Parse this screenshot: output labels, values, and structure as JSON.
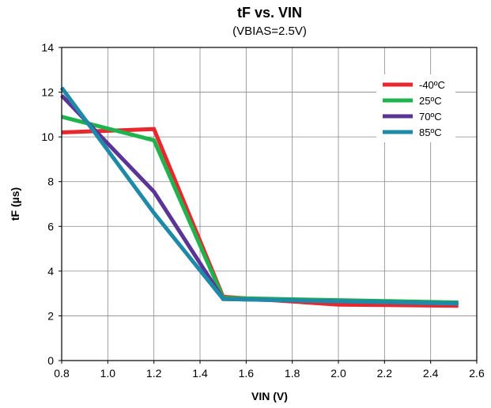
{
  "chart_data": {
    "type": "line",
    "title": "tF vs. VIN",
    "subtitle": "(VBIAS=2.5V)",
    "xlabel": "VIN (V)",
    "ylabel": "tF (µs)",
    "xlim": [
      0.8,
      2.6
    ],
    "ylim": [
      0,
      14
    ],
    "xticks": [
      "0.8",
      "1.0",
      "1.2",
      "1.4",
      "1.6",
      "1.8",
      "2.0",
      "2.2",
      "2.4",
      "2.6"
    ],
    "yticks": [
      "0",
      "2",
      "4",
      "6",
      "8",
      "10",
      "12",
      "14"
    ],
    "grid": true,
    "legend_position": "top-right",
    "series": [
      {
        "name": "-40ºC",
        "color": "#e8282e",
        "x": [
          0.8,
          1.2,
          1.5,
          2.0,
          2.52
        ],
        "y": [
          10.2,
          10.35,
          2.85,
          2.5,
          2.45
        ]
      },
      {
        "name": "25ºC",
        "color": "#1fb34d",
        "x": [
          0.8,
          1.2,
          1.5,
          2.0,
          2.52
        ],
        "y": [
          10.9,
          9.85,
          2.8,
          2.7,
          2.6
        ]
      },
      {
        "name": "70ºC",
        "color": "#5b3596",
        "x": [
          0.8,
          1.2,
          1.5,
          2.0,
          2.52
        ],
        "y": [
          11.85,
          7.55,
          2.75,
          2.65,
          2.55
        ]
      },
      {
        "name": "85ºC",
        "color": "#1f8aa8",
        "x": [
          0.8,
          1.2,
          1.5,
          2.0,
          2.52
        ],
        "y": [
          12.2,
          6.6,
          2.75,
          2.65,
          2.55
        ]
      }
    ]
  }
}
